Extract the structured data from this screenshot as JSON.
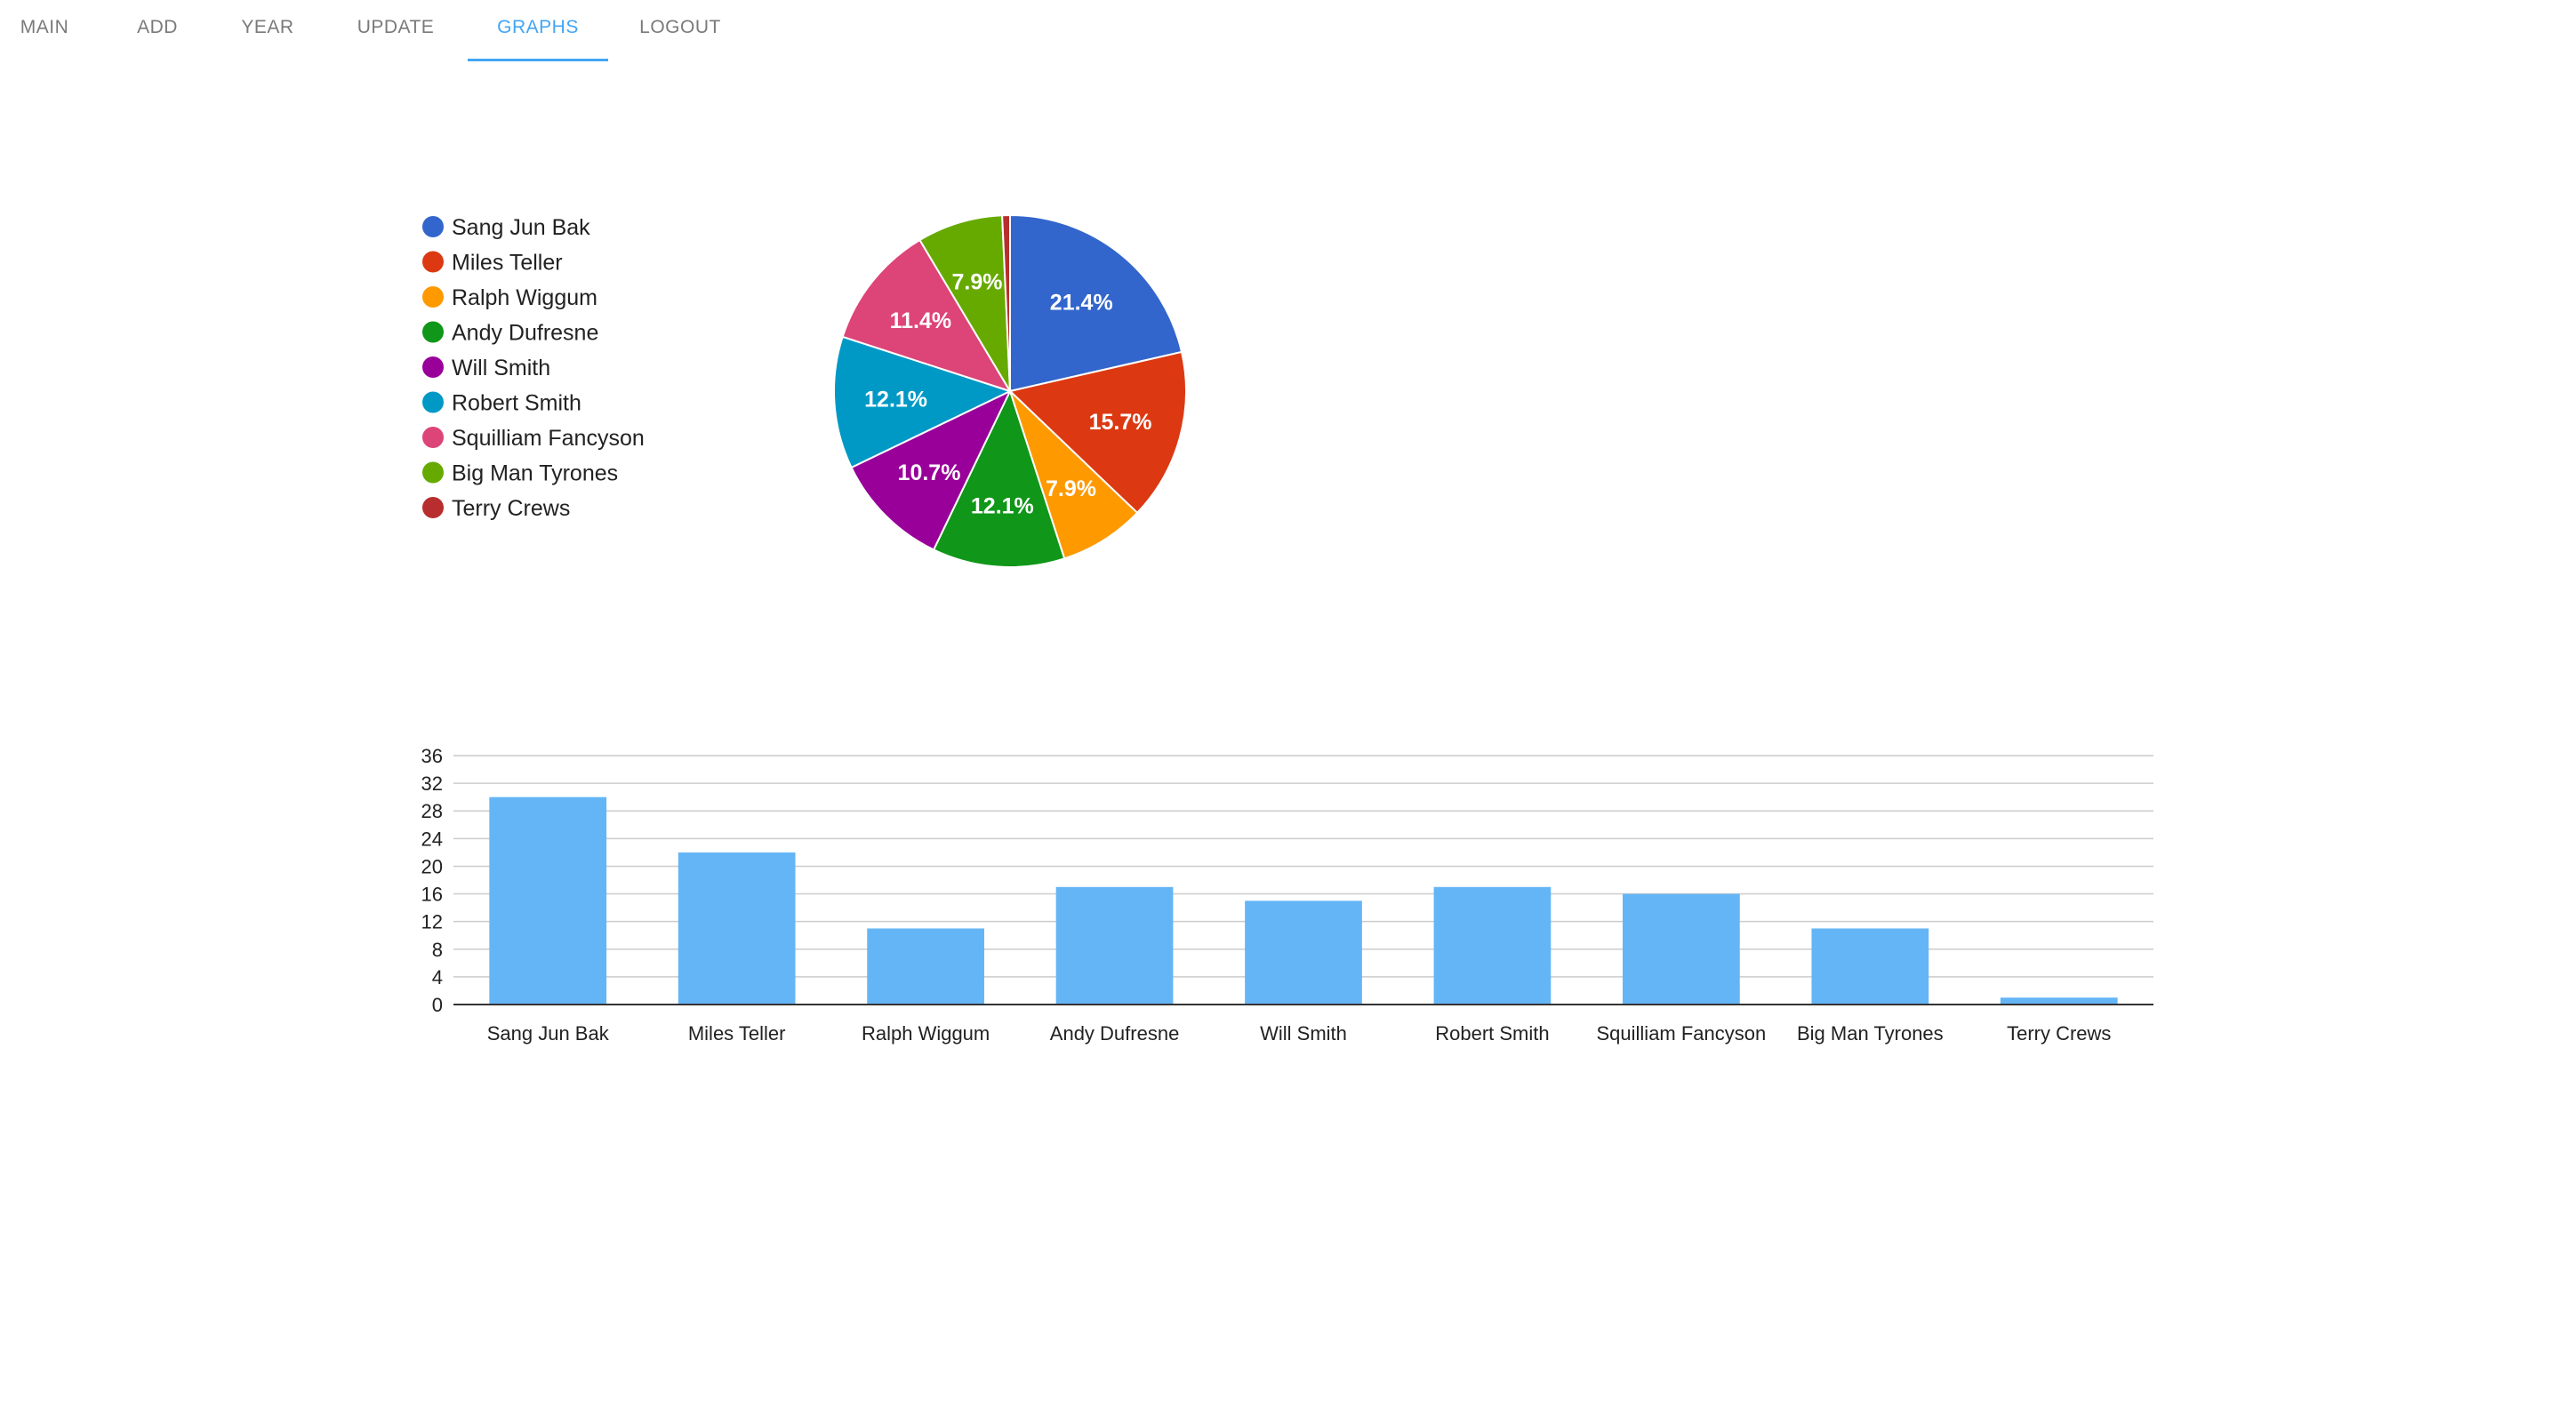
{
  "nav": {
    "tabs": [
      {
        "label": "MAIN",
        "active": false
      },
      {
        "label": "ADD",
        "active": false
      },
      {
        "label": "YEAR",
        "active": false
      },
      {
        "label": "UPDATE",
        "active": false
      },
      {
        "label": "GRAPHS",
        "active": true
      },
      {
        "label": "LOGOUT",
        "active": false
      }
    ],
    "accent": "#42a5f5"
  },
  "chart_data": [
    {
      "type": "pie",
      "title": "",
      "legend_position": "left",
      "labels": [
        "Sang Jun Bak",
        "Miles Teller",
        "Ralph Wiggum",
        "Andy Dufresne",
        "Will Smith",
        "Robert Smith",
        "Squilliam Fancyson",
        "Big Man Tyrones",
        "Terry Crews"
      ],
      "values": [
        30,
        22,
        11,
        17,
        15,
        17,
        16,
        11,
        1
      ],
      "percent_labels": [
        "21.4%",
        "15.7%",
        "7.9%",
        "12.1%",
        "10.7%",
        "12.1%",
        "11.4%",
        "7.9%",
        ""
      ],
      "colors": [
        "#3366cc",
        "#dc3912",
        "#ff9900",
        "#109618",
        "#990099",
        "#0099c6",
        "#dd4477",
        "#66aa00",
        "#b82e2e"
      ]
    },
    {
      "type": "bar",
      "title": "",
      "xlabel": "",
      "ylabel": "",
      "categories": [
        "Sang Jun Bak",
        "Miles Teller",
        "Ralph Wiggum",
        "Andy Dufresne",
        "Will Smith",
        "Robert Smith",
        "Squilliam Fancyson",
        "Big Man Tyrones",
        "Terry Crews"
      ],
      "values": [
        30,
        22,
        11,
        17,
        15,
        17,
        16,
        11,
        1
      ],
      "ylim": [
        0,
        36
      ],
      "yticks": [
        "0",
        "4",
        "8",
        "12",
        "16",
        "20",
        "24",
        "28",
        "32",
        "36"
      ],
      "grid": true,
      "bar_color": "#64b5f6"
    }
  ]
}
